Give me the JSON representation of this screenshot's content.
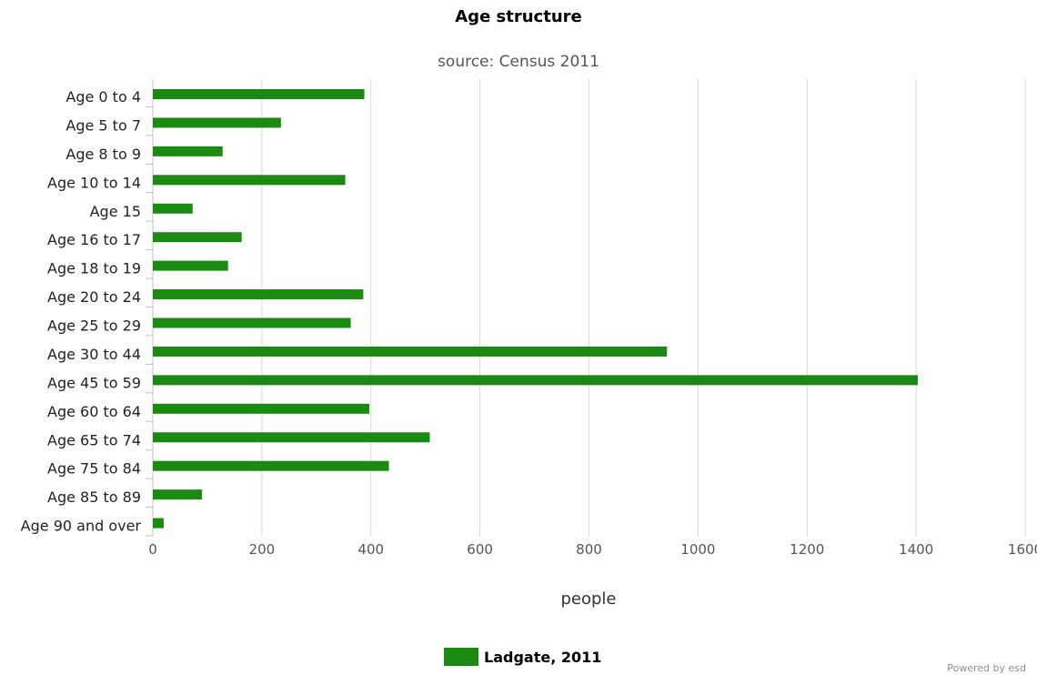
{
  "chart_data": {
    "type": "bar",
    "orientation": "horizontal",
    "title": "Age structure",
    "subtitle": "source: Census 2011",
    "xlabel": "people",
    "ylabel": "",
    "xlim": [
      0,
      1600
    ],
    "x_ticks": [
      0,
      200,
      400,
      600,
      800,
      1000,
      1200,
      1400,
      1600
    ],
    "grid": true,
    "legend_position": "bottom",
    "categories": [
      "Age 0 to 4",
      "Age 5 to 7",
      "Age 8 to 9",
      "Age 10 to 14",
      "Age 15",
      "Age 16 to 17",
      "Age 18 to 19",
      "Age 20 to 24",
      "Age 25 to 29",
      "Age 30 to 44",
      "Age 45 to 59",
      "Age 60 to 64",
      "Age 65 to 74",
      "Age 75 to 84",
      "Age 85 to 89",
      "Age 90 and over"
    ],
    "series": [
      {
        "name": "Ladgate, 2011",
        "color": "#1b8a12",
        "values": [
          388,
          235,
          128,
          353,
          73,
          163,
          138,
          386,
          363,
          943,
          1403,
          397,
          508,
          433,
          90,
          20
        ]
      }
    ]
  },
  "footer": {
    "credit": "Powered by esd"
  }
}
